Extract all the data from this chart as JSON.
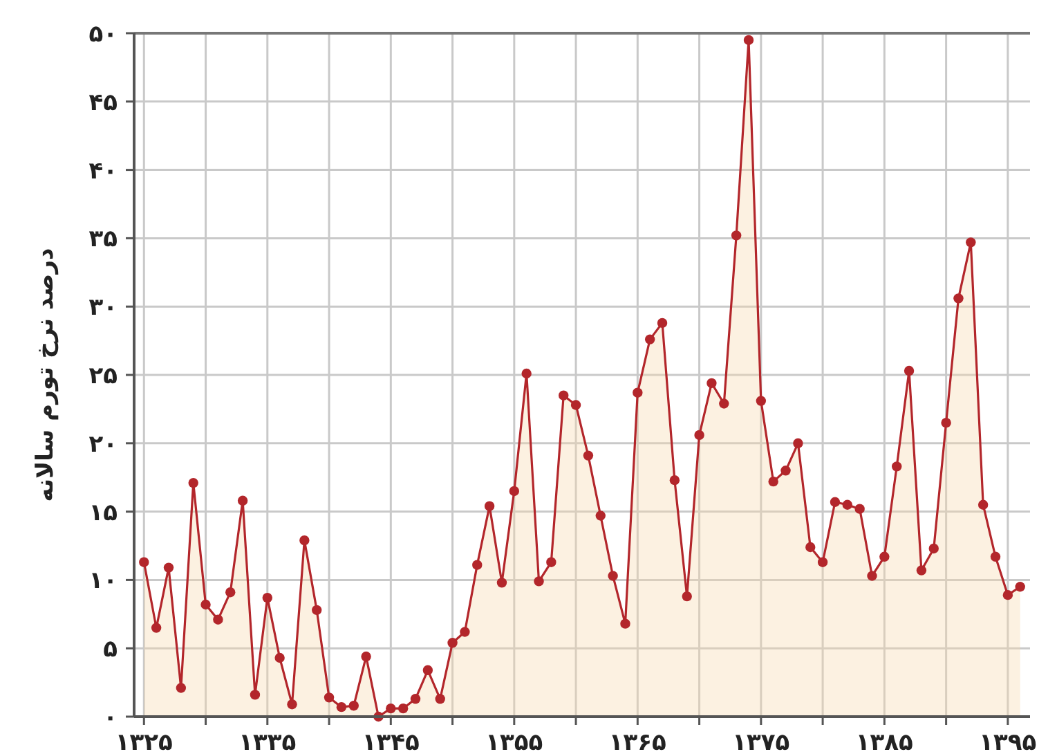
{
  "chart_data": {
    "type": "area",
    "ylabel": "درصد نرخ تورم سالانه",
    "x": [
      1325,
      1326,
      1327,
      1328,
      1329,
      1330,
      1331,
      1332,
      1333,
      1334,
      1335,
      1336,
      1337,
      1338,
      1339,
      1340,
      1341,
      1342,
      1343,
      1344,
      1345,
      1346,
      1347,
      1348,
      1349,
      1350,
      1351,
      1352,
      1353,
      1354,
      1355,
      1356,
      1357,
      1358,
      1359,
      1360,
      1361,
      1362,
      1363,
      1364,
      1365,
      1366,
      1367,
      1368,
      1369,
      1370,
      1371,
      1372,
      1373,
      1374,
      1375,
      1376,
      1377,
      1378,
      1379,
      1380,
      1381,
      1382,
      1383,
      1384,
      1385,
      1386,
      1387,
      1388,
      1389,
      1390,
      1391,
      1392,
      1393,
      1394,
      1395,
      1396
    ],
    "series": [
      {
        "color": "#b3262b",
        "values": [
          11.3,
          6.5,
          10.9,
          2.1,
          17.1,
          8.2,
          7.1,
          9.1,
          15.8,
          1.6,
          8.7,
          4.3,
          0.9,
          12.9,
          7.8,
          1.4,
          0.7,
          0.8,
          4.4,
          0,
          0.6,
          0.6,
          1.3,
          3.4,
          1.3,
          5.4,
          6.2,
          11.1,
          15.4,
          9.8,
          16.5,
          25.1,
          9.9,
          11.3,
          23.5,
          22.8,
          19.1,
          14.7,
          10.3,
          6.8,
          23.7,
          27.6,
          28.8,
          17.3,
          8.8,
          20.6,
          24.4,
          22.9,
          35.2,
          49.5,
          23.1,
          17.2,
          18.0,
          20.0,
          12.4,
          11.3,
          15.7,
          15.5,
          15.2,
          10.3,
          11.7,
          18.3,
          25.3,
          10.7,
          12.3,
          21.5,
          30.6,
          34.7,
          15.5,
          11.7,
          8.9,
          9.5
        ]
      }
    ],
    "xlim": [
      1324.2,
      1396.8
    ],
    "xticks": [
      {
        "value": 1325,
        "label": "۱۳۲۵"
      },
      {
        "value": 1330,
        "label": null
      },
      {
        "value": 1335,
        "label": "۱۳۳۵"
      },
      {
        "value": 1340,
        "label": null
      },
      {
        "value": 1345,
        "label": "۱۳۴۵"
      },
      {
        "value": 1350,
        "label": null
      },
      {
        "value": 1355,
        "label": "۱۳۵۵"
      },
      {
        "value": 1360,
        "label": null
      },
      {
        "value": 1365,
        "label": "۱۳۶۵"
      },
      {
        "value": 1370,
        "label": null
      },
      {
        "value": 1375,
        "label": "۱۳۷۵"
      },
      {
        "value": 1380,
        "label": null
      },
      {
        "value": 1385,
        "label": "۱۳۸۵"
      },
      {
        "value": 1390,
        "label": null
      },
      {
        "value": 1395,
        "label": "۱۳۹۵"
      }
    ],
    "ylim": [
      0,
      50
    ],
    "yticks": [
      {
        "value": 0,
        "label": "۰"
      },
      {
        "value": 5,
        "label": "۵"
      },
      {
        "value": 10,
        "label": "۱۰"
      },
      {
        "value": 15,
        "label": "۱۵"
      },
      {
        "value": 20,
        "label": "۲۰"
      },
      {
        "value": 25,
        "label": "۲۵"
      },
      {
        "value": 30,
        "label": "۳۰"
      },
      {
        "value": 35,
        "label": "۳۵"
      },
      {
        "value": 40,
        "label": "۴۰"
      },
      {
        "value": 45,
        "label": "۴۵"
      },
      {
        "value": 50,
        "label": "۵۰"
      }
    ],
    "grid": true,
    "marker": "circle",
    "line_style": "solid"
  }
}
